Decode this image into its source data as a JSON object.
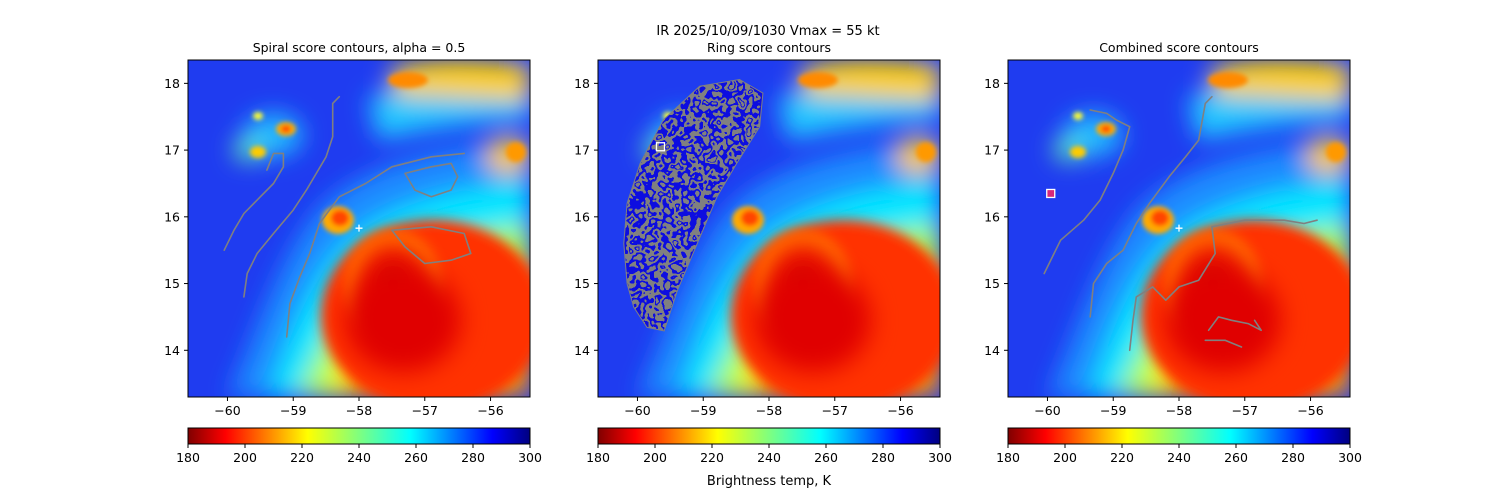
{
  "figure": {
    "suptitle": "IR  2025/10/09/1030    Vmax = 55 kt",
    "colorbar_label": "Brightness temp, K"
  },
  "chart_data": [
    {
      "type": "heatmap",
      "title": "Spiral score contours, alpha =  0.5",
      "xlim": [
        -60.6,
        -55.4
      ],
      "ylim": [
        13.3,
        18.35
      ],
      "x_ticks": [
        -60,
        -59,
        -58,
        -57,
        -56
      ],
      "x_tick_labels": [
        "−60",
        "−59",
        "−58",
        "−57",
        "−56"
      ],
      "y_ticks": [
        14,
        15,
        16,
        17,
        18
      ],
      "y_tick_labels": [
        "14",
        "15",
        "16",
        "17",
        "18"
      ],
      "colorbar": {
        "range": [
          180,
          300
        ],
        "ticks": [
          180,
          200,
          220,
          240,
          260,
          280,
          300
        ],
        "colormap": "jet_r",
        "label": ""
      },
      "center_marker": {
        "lon": -58.0,
        "lat": 15.83
      },
      "contours": [
        [
          [
            -60.05,
            15.5
          ],
          [
            -59.9,
            15.8
          ],
          [
            -59.75,
            16.05
          ],
          [
            -59.5,
            16.3
          ],
          [
            -59.3,
            16.5
          ],
          [
            -59.15,
            16.75
          ],
          [
            -59.15,
            16.95
          ],
          [
            -59.3,
            16.95
          ],
          [
            -59.4,
            16.7
          ]
        ],
        [
          [
            -59.75,
            14.8
          ],
          [
            -59.7,
            15.15
          ],
          [
            -59.55,
            15.45
          ],
          [
            -59.3,
            15.75
          ],
          [
            -59.0,
            16.1
          ],
          [
            -58.8,
            16.4
          ],
          [
            -58.5,
            16.9
          ],
          [
            -58.4,
            17.2
          ],
          [
            -58.4,
            17.7
          ],
          [
            -58.3,
            17.8
          ]
        ],
        [
          [
            -59.1,
            14.2
          ],
          [
            -59.05,
            14.7
          ],
          [
            -58.9,
            15.1
          ],
          [
            -58.75,
            15.45
          ],
          [
            -58.6,
            15.9
          ],
          [
            -58.3,
            16.3
          ],
          [
            -57.9,
            16.5
          ],
          [
            -57.5,
            16.75
          ],
          [
            -56.9,
            16.9
          ],
          [
            -56.4,
            16.95
          ]
        ],
        [
          [
            -57.3,
            16.65
          ],
          [
            -57.15,
            16.4
          ],
          [
            -56.9,
            16.3
          ],
          [
            -56.6,
            16.4
          ],
          [
            -56.5,
            16.6
          ],
          [
            -56.6,
            16.8
          ],
          [
            -56.9,
            16.75
          ],
          [
            -57.3,
            16.65
          ]
        ],
        [
          [
            -57.5,
            15.8
          ],
          [
            -57.3,
            15.55
          ],
          [
            -57.0,
            15.3
          ],
          [
            -56.6,
            15.35
          ],
          [
            -56.3,
            15.45
          ],
          [
            -56.4,
            15.75
          ],
          [
            -56.9,
            15.85
          ],
          [
            -57.5,
            15.8
          ]
        ]
      ]
    },
    {
      "type": "heatmap",
      "title": "Ring score contours",
      "xlim": [
        -60.6,
        -55.4
      ],
      "ylim": [
        13.3,
        18.35
      ],
      "x_ticks": [
        -60,
        -59,
        -58,
        -57,
        -56
      ],
      "x_tick_labels": [
        "−60",
        "−59",
        "−58",
        "−57",
        "−56"
      ],
      "y_ticks": [
        14,
        15,
        16,
        17,
        18
      ],
      "y_tick_labels": [
        "14",
        "15",
        "16",
        "17",
        "18"
      ],
      "colorbar": {
        "range": [
          180,
          300
        ],
        "ticks": [
          180,
          200,
          220,
          240,
          260,
          280,
          300
        ],
        "colormap": "jet_r",
        "label": "Brightness temp, K"
      },
      "square_marker": {
        "lon": -59.65,
        "lat": 17.05
      },
      "ring_region": [
        [
          -60.15,
          15.0
        ],
        [
          -60.2,
          15.6
        ],
        [
          -60.15,
          16.2
        ],
        [
          -59.95,
          16.8
        ],
        [
          -59.6,
          17.45
        ],
        [
          -59.05,
          17.95
        ],
        [
          -58.45,
          18.05
        ],
        [
          -58.1,
          17.85
        ],
        [
          -58.15,
          17.35
        ],
        [
          -58.5,
          16.8
        ],
        [
          -58.8,
          16.3
        ],
        [
          -59.1,
          15.6
        ],
        [
          -59.4,
          14.9
        ],
        [
          -59.6,
          14.3
        ],
        [
          -59.85,
          14.35
        ],
        [
          -60.05,
          14.65
        ]
      ]
    },
    {
      "type": "heatmap",
      "title": "Combined score contours",
      "xlim": [
        -60.6,
        -55.4
      ],
      "ylim": [
        13.3,
        18.35
      ],
      "x_ticks": [
        -60,
        -59,
        -58,
        -57,
        -56
      ],
      "x_tick_labels": [
        "−60",
        "−59",
        "−58",
        "−57",
        "−56"
      ],
      "y_ticks": [
        14,
        15,
        16,
        17,
        18
      ],
      "y_tick_labels": [
        "14",
        "15",
        "16",
        "17",
        "18"
      ],
      "colorbar": {
        "range": [
          180,
          300
        ],
        "ticks": [
          180,
          200,
          220,
          240,
          260,
          280,
          300
        ],
        "colormap": "jet_r",
        "label": ""
      },
      "center_marker": {
        "lon": -58.0,
        "lat": 15.83
      },
      "square_marker": {
        "lon": -59.95,
        "lat": 16.35
      },
      "contours": [
        [
          [
            -60.05,
            15.15
          ],
          [
            -59.8,
            15.65
          ],
          [
            -59.45,
            15.95
          ],
          [
            -59.2,
            16.25
          ],
          [
            -59.0,
            16.65
          ],
          [
            -58.85,
            17.0
          ],
          [
            -58.75,
            17.35
          ],
          [
            -58.95,
            17.45
          ],
          [
            -59.1,
            17.55
          ],
          [
            -59.35,
            17.6
          ]
        ],
        [
          [
            -59.35,
            14.5
          ],
          [
            -59.3,
            15.0
          ],
          [
            -59.1,
            15.3
          ],
          [
            -58.85,
            15.5
          ],
          [
            -58.65,
            15.9
          ],
          [
            -58.45,
            16.2
          ],
          [
            -58.15,
            16.6
          ],
          [
            -57.9,
            16.9
          ],
          [
            -57.7,
            17.15
          ],
          [
            -57.6,
            17.7
          ],
          [
            -57.5,
            17.8
          ]
        ],
        [
          [
            -58.75,
            14.0
          ],
          [
            -58.7,
            14.45
          ],
          [
            -58.65,
            14.8
          ],
          [
            -58.4,
            14.95
          ],
          [
            -58.2,
            14.75
          ],
          [
            -58.0,
            14.95
          ],
          [
            -57.7,
            15.05
          ],
          [
            -57.45,
            15.45
          ],
          [
            -57.5,
            15.85
          ],
          [
            -57.0,
            15.95
          ],
          [
            -56.4,
            15.95
          ],
          [
            -56.1,
            15.9
          ],
          [
            -55.9,
            15.95
          ]
        ],
        [
          [
            -57.55,
            14.3
          ],
          [
            -57.4,
            14.5
          ],
          [
            -57.2,
            14.45
          ],
          [
            -56.95,
            14.4
          ],
          [
            -56.75,
            14.3
          ],
          [
            -56.85,
            14.45
          ]
        ],
        [
          [
            -57.6,
            14.15
          ],
          [
            -57.3,
            14.15
          ],
          [
            -57.05,
            14.05
          ]
        ]
      ]
    }
  ]
}
